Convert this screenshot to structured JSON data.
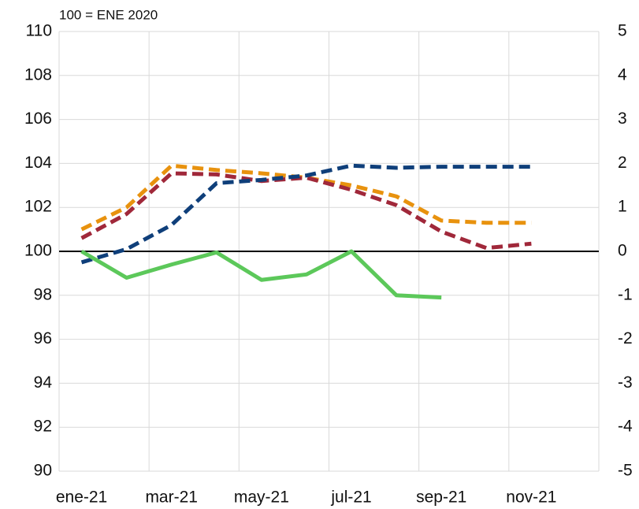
{
  "chart_data": {
    "type": "line",
    "unit_label": "100 = ENE 2020",
    "categories": [
      "ene-21",
      null,
      "mar-21",
      null,
      "may-21",
      null,
      "jul-21",
      null,
      "sep-21",
      null,
      "nov-21",
      null
    ],
    "series": [
      {
        "color": "#e8920e",
        "dash": true,
        "values": [
          101.0,
          102.0,
          103.9,
          103.7,
          103.55,
          103.35,
          103.0,
          102.5,
          101.4,
          101.3,
          101.3,
          null
        ]
      },
      {
        "color": "#a0283a",
        "dash": true,
        "values": [
          100.6,
          101.7,
          103.55,
          103.5,
          103.2,
          103.35,
          102.8,
          102.1,
          100.9,
          100.15,
          100.35,
          null
        ]
      },
      {
        "color": "#0f3f7a",
        "dash": true,
        "values": [
          99.5,
          100.1,
          101.2,
          103.1,
          103.25,
          103.45,
          103.9,
          103.8,
          103.85,
          103.85,
          103.85,
          null
        ]
      },
      {
        "color": "#5cc85a",
        "dash": false,
        "values": [
          100.0,
          98.8,
          99.4,
          99.95,
          98.7,
          98.95,
          100.0,
          98.0,
          97.9,
          null,
          null,
          null
        ]
      }
    ],
    "ylim": [
      90,
      110
    ],
    "yticks": [
      90,
      92,
      94,
      96,
      98,
      100,
      102,
      104,
      106,
      108,
      110
    ],
    "y2lim": [
      -5,
      5
    ],
    "y2ticks": [
      -5,
      -4,
      -3,
      -2,
      -1,
      0,
      1,
      2,
      3,
      4,
      5
    ],
    "reference_line": 100,
    "grid": true
  }
}
